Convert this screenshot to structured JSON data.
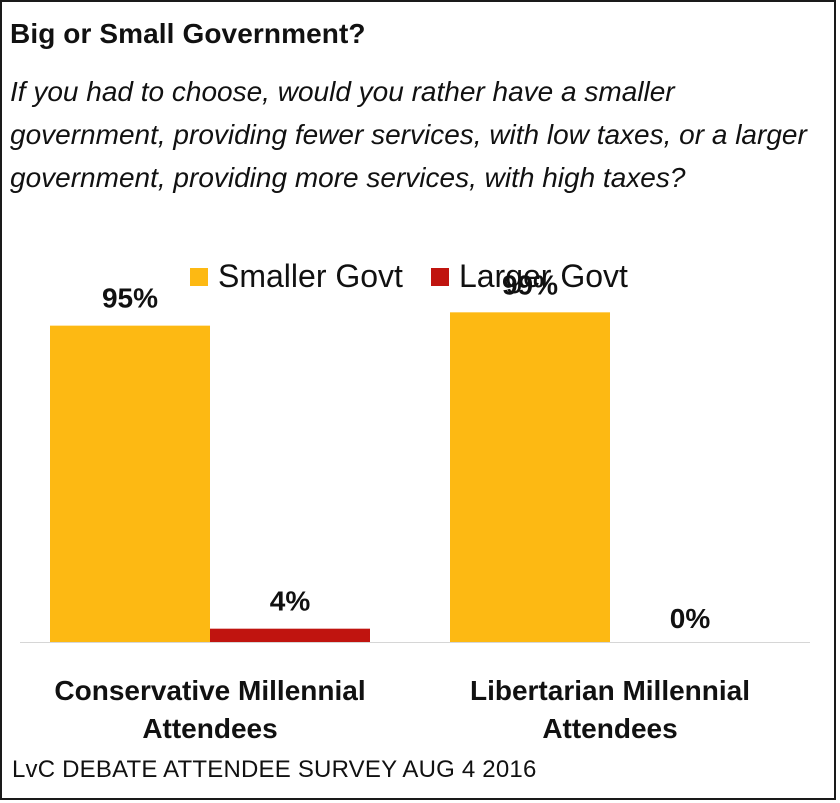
{
  "title": "Big or Small Government?",
  "subtitle": "If you had to choose, would you rather have a smaller government, providing fewer services, with low taxes, or a larger government, providing more services, with high taxes?",
  "source": "LvC DEBATE ATTENDEE SURVEY AUG 4 2016",
  "chart_data": {
    "type": "bar",
    "categories": [
      [
        "Conservative Millennial",
        "Attendees"
      ],
      [
        "Libertarian Millennial",
        "Attendees"
      ]
    ],
    "series": [
      {
        "name": "Smaller Govt",
        "color": "#FDB913",
        "values": [
          95,
          99
        ],
        "labels": [
          "95%",
          "99%"
        ]
      },
      {
        "name": "Larger Govt",
        "color": "#C0140F",
        "values": [
          4,
          0
        ],
        "labels": [
          "4%",
          "0%"
        ]
      }
    ],
    "ylim": [
      0,
      100
    ],
    "legend_position": "top-center",
    "grid": false
  }
}
